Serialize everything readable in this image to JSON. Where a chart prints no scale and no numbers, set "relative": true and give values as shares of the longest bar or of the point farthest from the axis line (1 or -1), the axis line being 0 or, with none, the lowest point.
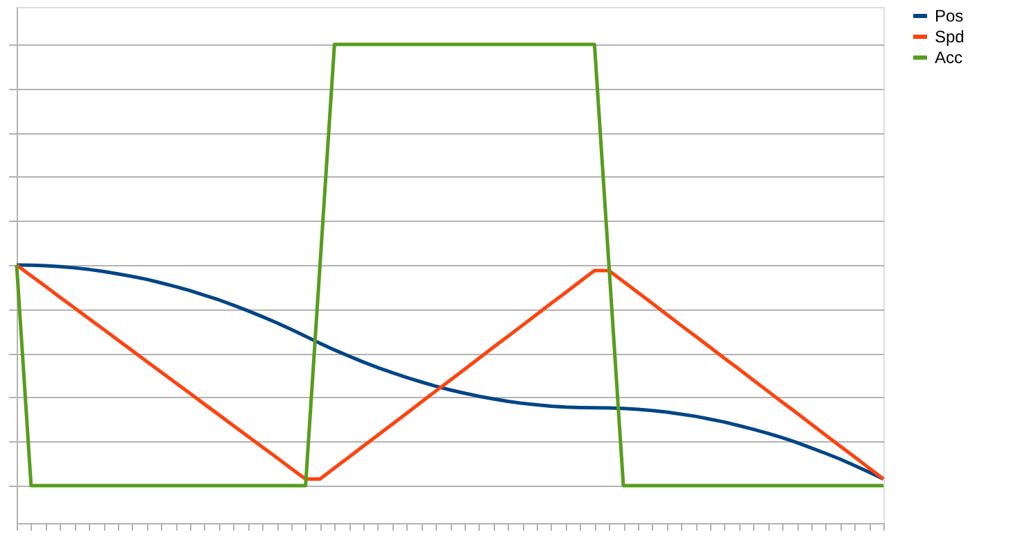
{
  "chart_data": {
    "type": "line",
    "relative": true,
    "grid": "y",
    "legend": "right",
    "marker": "none",
    "line_style": "solid",
    "categories": [
      null,
      null,
      null,
      null,
      null,
      null,
      null,
      null,
      null,
      null,
      null,
      null,
      null,
      null,
      null,
      null,
      null,
      null,
      null,
      null,
      null,
      null,
      null,
      null,
      null,
      null,
      null,
      null,
      null,
      null,
      null,
      null,
      null,
      null,
      null,
      null,
      null,
      null,
      null,
      null,
      null,
      null,
      null,
      null,
      null,
      null,
      null,
      null,
      null,
      null,
      null,
      null,
      null,
      null,
      null,
      null,
      null,
      null,
      null,
      null,
      null
    ],
    "series": [
      {
        "name": "Pos",
        "color": "#004586",
        "values": [
          0,
          -0.001,
          -0.003,
          -0.007,
          -0.013,
          -0.02,
          -0.029,
          -0.04,
          -0.052,
          -0.065,
          -0.081,
          -0.098,
          -0.116,
          -0.137,
          -0.158,
          -0.182,
          -0.207,
          -0.234,
          -0.262,
          -0.292,
          -0.323,
          -0.355,
          -0.385,
          -0.413,
          -0.44,
          -0.465,
          -0.488,
          -0.51,
          -0.53,
          -0.549,
          -0.566,
          -0.581,
          -0.595,
          -0.607,
          -0.618,
          -0.627,
          -0.634,
          -0.64,
          -0.644,
          -0.646,
          -0.647,
          -0.648,
          -0.65,
          -0.654,
          -0.66,
          -0.667,
          -0.676,
          -0.686,
          -0.699,
          -0.712,
          -0.728,
          -0.745,
          -0.763,
          -0.783,
          -0.805,
          -0.829,
          -0.854,
          -0.88,
          -0.909,
          -0.939,
          -0.97
        ]
      },
      {
        "name": "Spd",
        "color": "#ff420e",
        "values": [
          0,
          -0.049,
          -0.097,
          -0.146,
          -0.194,
          -0.243,
          -0.291,
          -0.34,
          -0.388,
          -0.437,
          -0.485,
          -0.534,
          -0.582,
          -0.631,
          -0.679,
          -0.728,
          -0.776,
          -0.825,
          -0.873,
          -0.922,
          -0.97,
          -0.97,
          -0.92,
          -0.871,
          -0.821,
          -0.771,
          -0.722,
          -0.672,
          -0.622,
          -0.572,
          -0.523,
          -0.473,
          -0.423,
          -0.373,
          -0.324,
          -0.274,
          -0.224,
          -0.174,
          -0.125,
          -0.075,
          -0.025,
          -0.025,
          -0.075,
          -0.124,
          -0.174,
          -0.224,
          -0.274,
          -0.323,
          -0.373,
          -0.423,
          -0.472,
          -0.522,
          -0.572,
          -0.622,
          -0.671,
          -0.721,
          -0.771,
          -0.821,
          -0.87,
          -0.92,
          -0.97
        ]
      },
      {
        "name": "Acc",
        "color": "#579d1c",
        "values": [
          0,
          -1,
          -1,
          -1,
          -1,
          -1,
          -1,
          -1,
          -1,
          -1,
          -1,
          -1,
          -1,
          -1,
          -1,
          -1,
          -1,
          -1,
          -1,
          -1,
          -1,
          0,
          1,
          1,
          1,
          1,
          1,
          1,
          1,
          1,
          1,
          1,
          1,
          1,
          1,
          1,
          1,
          1,
          1,
          1,
          1,
          0,
          -1,
          -1,
          -1,
          -1,
          -1,
          -1,
          -1,
          -1,
          -1,
          -1,
          -1,
          -1,
          -1,
          -1,
          -1,
          -1,
          -1,
          -1,
          -1
        ]
      }
    ]
  }
}
